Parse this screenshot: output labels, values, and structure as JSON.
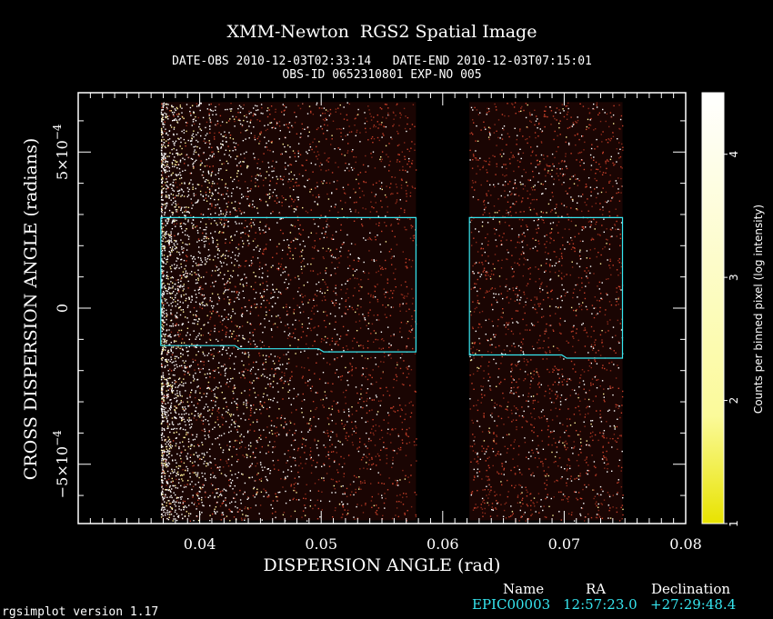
{
  "header": {
    "title": "XMM-Newton  RGS2 Spatial Image",
    "line1": "DATE-OBS 2010-12-03T02:33:14   DATE-END 2010-12-03T07:15:01",
    "line2": "OBS-ID 0652310801 EXP-NO 005"
  },
  "chart_data": {
    "type": "heatmap",
    "title": "XMM-Newton  RGS2 Spatial Image",
    "xlabel": "DISPERSION ANGLE (rad)",
    "ylabel": "CROSS DISPERSION ANGLE (radians)",
    "xlim": [
      0.03,
      0.08
    ],
    "ylim": [
      -0.00069,
      0.00069
    ],
    "x_ticks": [
      0.04,
      0.05,
      0.06,
      0.07,
      0.08
    ],
    "x_tick_labels": [
      "0.04",
      "0.05",
      "0.06",
      "0.07",
      "0.08"
    ],
    "y_ticks": [
      -0.0005,
      0,
      0.0005
    ],
    "y_tick_labels": [
      {
        "mant": "−5×10",
        "exp": "−4"
      },
      {
        "mant": "0",
        "exp": ""
      },
      {
        "mant": "5×10",
        "exp": "−4"
      }
    ],
    "data_regions": [
      {
        "x": [
          0.0368,
          0.0578
        ],
        "y": [
          -0.00068,
          0.00066
        ]
      },
      {
        "x": [
          0.0622,
          0.0748
        ],
        "y": [
          -0.00068,
          0.00066
        ]
      }
    ],
    "source_regions": [
      {
        "x": [
          0.0368,
          0.0578
        ],
        "y_top": 0.00029,
        "y_bottom": [
          [
            0.0368,
            -0.00012
          ],
          [
            0.0429,
            -0.00012
          ],
          [
            0.0433,
            -0.00013
          ],
          [
            0.0498,
            -0.00013
          ],
          [
            0.0502,
            -0.00014
          ],
          [
            0.0578,
            -0.00014
          ]
        ]
      },
      {
        "x": [
          0.0622,
          0.0748
        ],
        "y_top": 0.00029,
        "y_bottom": [
          [
            0.0622,
            -0.00015
          ],
          [
            0.0698,
            -0.00015
          ],
          [
            0.0702,
            -0.00016
          ],
          [
            0.0748,
            -0.00016
          ]
        ]
      }
    ],
    "colorbar": {
      "label": "Counts per binned pixel (log intensity)",
      "range": [
        1,
        4.5
      ],
      "ticks": [
        1,
        2,
        3,
        4
      ],
      "tick_labels": [
        "1",
        "2",
        "3",
        "4"
      ],
      "colormap": [
        "#e8e300",
        "#ffffff"
      ]
    },
    "colors": {
      "image_dot": "#ffffff",
      "image_dim": "#8a2a1a",
      "region": "#36e6f0"
    }
  },
  "source_table": {
    "headers": [
      "Name",
      "RA",
      "Declination"
    ],
    "rows": [
      [
        "EPIC00003",
        "12:57:23.0",
        "+27:29:48.4"
      ]
    ]
  },
  "footer": "rgsimplot version 1.17"
}
